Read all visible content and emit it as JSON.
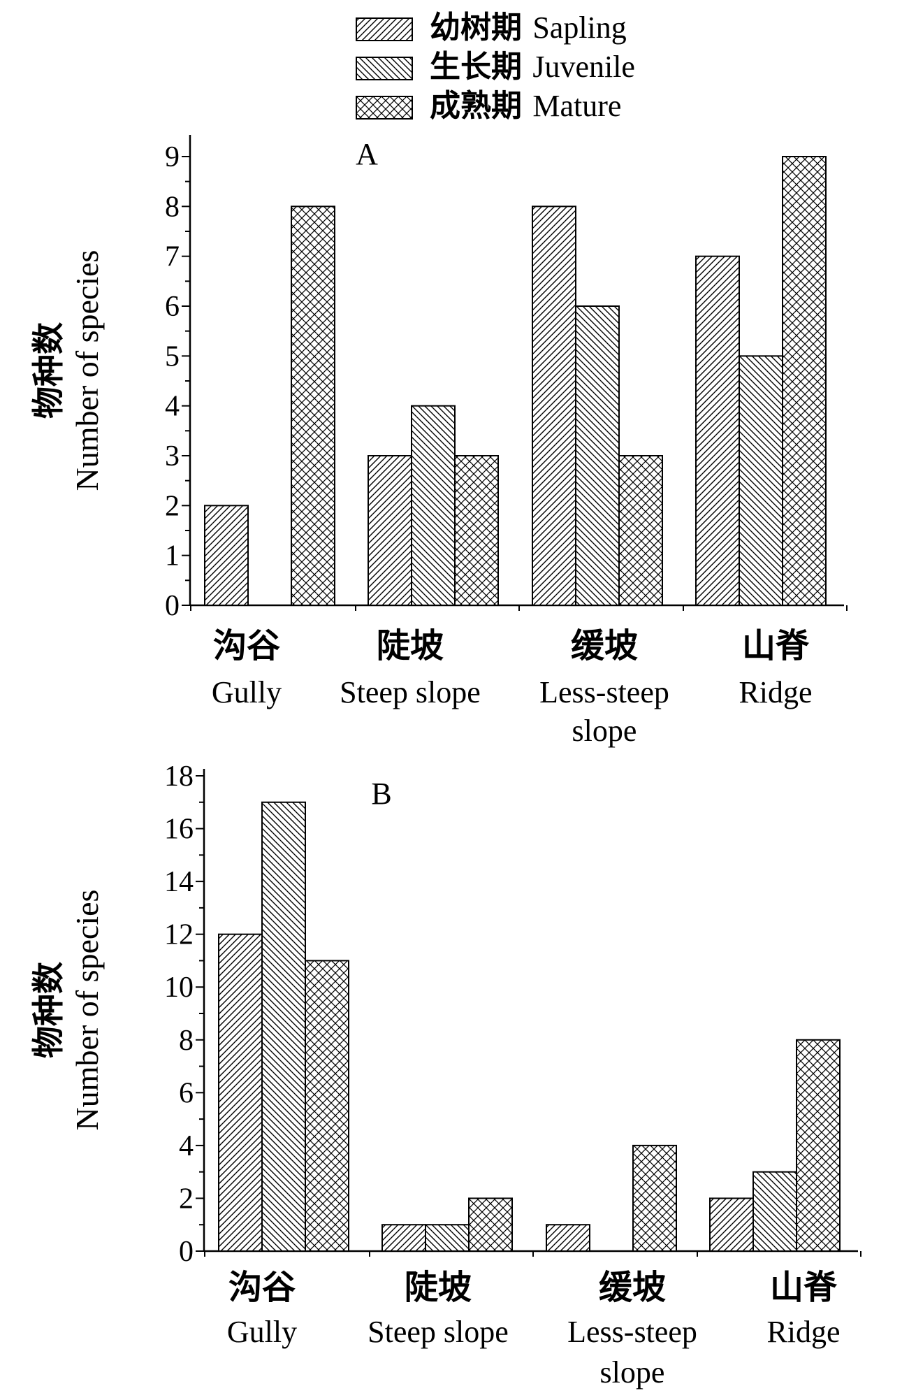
{
  "legend": {
    "items": [
      {
        "zh": "幼树期",
        "en": "Sapling",
        "pattern": "hatch-fwd"
      },
      {
        "zh": "生长期",
        "en": "Juvenile",
        "pattern": "hatch-back"
      },
      {
        "zh": "成熟期",
        "en": "Mature",
        "pattern": "crosshatch"
      }
    ]
  },
  "colors": {
    "ink": "#000000",
    "background": "#ffffff"
  },
  "chart_data": [
    {
      "type": "bar",
      "panel_label": "A",
      "categories": [
        {
          "zh": "沟谷",
          "en": [
            "Gully"
          ]
        },
        {
          "zh": "陡坡",
          "en": [
            "Steep slope"
          ]
        },
        {
          "zh": "缓坡",
          "en": [
            "Less-steep",
            "slope"
          ]
        },
        {
          "zh": "山脊",
          "en": [
            "Ridge"
          ]
        }
      ],
      "series": [
        {
          "name": "幼树期 Sapling",
          "values": [
            2,
            3,
            8,
            7
          ]
        },
        {
          "name": "生长期 Juvenile",
          "values": [
            0,
            4,
            6,
            5
          ]
        },
        {
          "name": "成熟期 Mature",
          "values": [
            8,
            3,
            3,
            9
          ]
        }
      ],
      "ylabel_zh": "物种数",
      "ylabel_en": "Number of species",
      "ylim": [
        0,
        9.5
      ],
      "yticks": [
        "0",
        "1",
        "2",
        "3",
        "4",
        "5",
        "6",
        "7",
        "8",
        "9"
      ],
      "grid": false,
      "legend_position": "top"
    },
    {
      "type": "bar",
      "panel_label": "B",
      "categories": [
        {
          "zh": "沟谷",
          "en": [
            "Gully"
          ]
        },
        {
          "zh": "陡坡",
          "en": [
            "Steep slope"
          ]
        },
        {
          "zh": "缓坡",
          "en": [
            "Less-steep",
            "slope"
          ]
        },
        {
          "zh": "山脊",
          "en": [
            "Ridge"
          ]
        }
      ],
      "series": [
        {
          "name": "幼树期 Sapling",
          "values": [
            12,
            1,
            1,
            2
          ]
        },
        {
          "name": "生长期 Juvenile",
          "values": [
            17,
            1,
            0,
            3
          ]
        },
        {
          "name": "成熟期 Mature",
          "values": [
            11,
            2,
            4,
            8
          ]
        }
      ],
      "ylabel_zh": "物种数",
      "ylabel_en": "Number of species",
      "ylim": [
        0,
        18
      ],
      "yticks": [
        "0",
        "2",
        "4",
        "6",
        "8",
        "10",
        "12",
        "14",
        "16",
        "18"
      ],
      "grid": false,
      "legend_position": "top"
    }
  ]
}
